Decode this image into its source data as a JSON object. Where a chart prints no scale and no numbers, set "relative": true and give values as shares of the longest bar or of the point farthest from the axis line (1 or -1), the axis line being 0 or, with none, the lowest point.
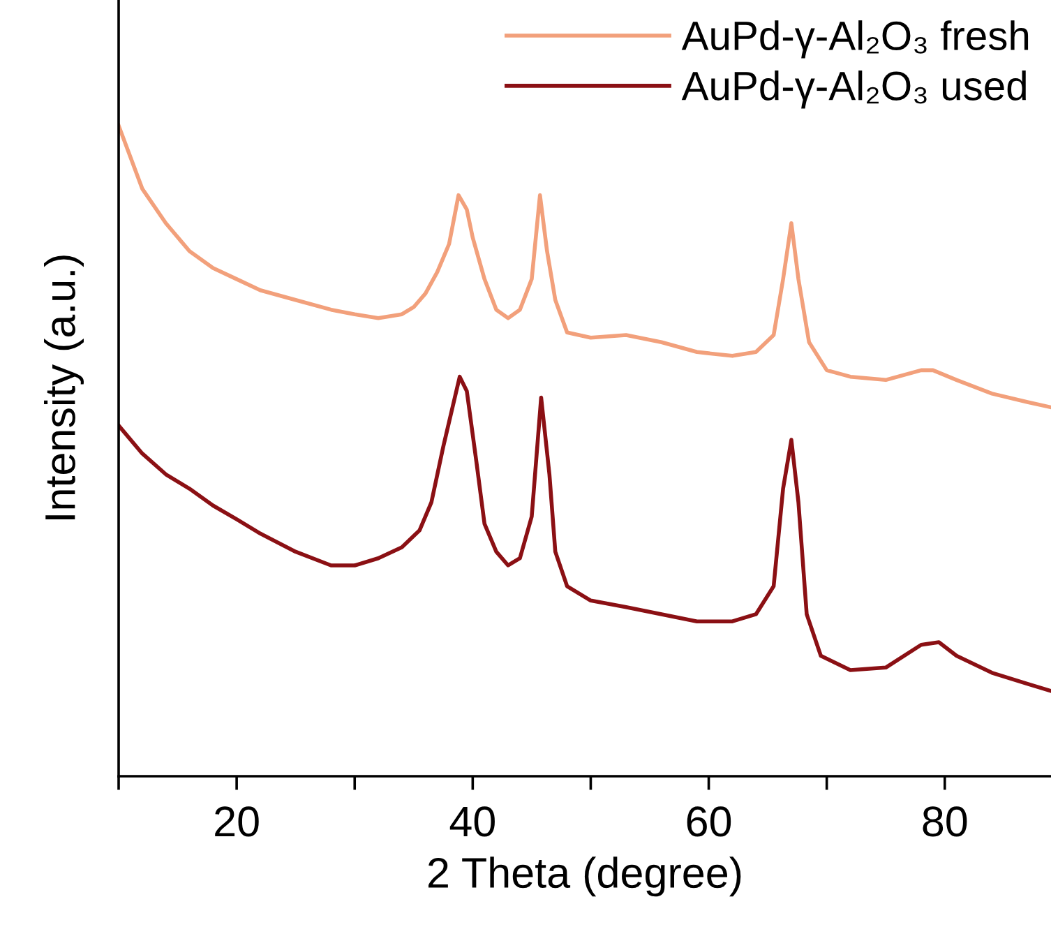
{
  "chart_data": {
    "type": "line",
    "relative": true,
    "xlabel": "2 Theta (degree)",
    "ylabel": "Intensity (a.u.)",
    "xlim": [
      10,
      89
    ],
    "xticks": [
      {
        "value": 10,
        "label": null
      },
      20,
      {
        "value": 30,
        "label": null
      },
      40,
      {
        "value": 50,
        "label": null
      },
      60,
      {
        "value": 70,
        "label": null
      },
      80
    ],
    "legend": "top right",
    "grid": false,
    "series": [
      {
        "name": "AuPd-γ-Al₂O₃ fresh",
        "color": "#f2a07b",
        "x": [
          10,
          12,
          14,
          16,
          18,
          20,
          22,
          25,
          28,
          30,
          32,
          34,
          35,
          36,
          37,
          38,
          38.8,
          39.5,
          40,
          41,
          42,
          43,
          44,
          45,
          45.7,
          46.3,
          47,
          48,
          50,
          53,
          56,
          59,
          62,
          64,
          65.5,
          66.3,
          67,
          67.6,
          68.5,
          70,
          72,
          75,
          78,
          79,
          81,
          84,
          87,
          89
        ],
        "values": [
          1.0,
          0.903,
          0.85,
          0.807,
          0.781,
          0.764,
          0.747,
          0.732,
          0.717,
          0.71,
          0.704,
          0.71,
          0.721,
          0.742,
          0.775,
          0.818,
          0.893,
          0.871,
          0.828,
          0.764,
          0.717,
          0.704,
          0.717,
          0.764,
          0.893,
          0.807,
          0.732,
          0.682,
          0.674,
          0.678,
          0.667,
          0.652,
          0.646,
          0.652,
          0.678,
          0.764,
          0.85,
          0.764,
          0.667,
          0.624,
          0.614,
          0.609,
          0.624,
          0.624,
          0.609,
          0.588,
          0.575,
          0.567
        ]
      },
      {
        "name": "AuPd-γ-Al₂O₃ used",
        "color": "#8b1014",
        "x": [
          10,
          12,
          14,
          16,
          18,
          20,
          22,
          25,
          28,
          30,
          32,
          34,
          35.5,
          36.5,
          37.5,
          38.9,
          39.5,
          40.3,
          41,
          42,
          43,
          44,
          45,
          45.8,
          46.5,
          47,
          48,
          50,
          53,
          56,
          59,
          62,
          64,
          65.5,
          66.3,
          67,
          67.6,
          68.3,
          69.5,
          72,
          75,
          78,
          79.5,
          81,
          84,
          87,
          89
        ],
        "values": [
          0.539,
          0.496,
          0.464,
          0.442,
          0.416,
          0.395,
          0.373,
          0.345,
          0.324,
          0.324,
          0.335,
          0.352,
          0.378,
          0.421,
          0.506,
          0.614,
          0.592,
          0.485,
          0.388,
          0.345,
          0.324,
          0.335,
          0.399,
          0.582,
          0.464,
          0.345,
          0.292,
          0.27,
          0.26,
          0.249,
          0.238,
          0.238,
          0.249,
          0.292,
          0.442,
          0.517,
          0.421,
          0.249,
          0.185,
          0.163,
          0.167,
          0.202,
          0.206,
          0.185,
          0.159,
          0.142,
          0.131
        ]
      }
    ]
  }
}
